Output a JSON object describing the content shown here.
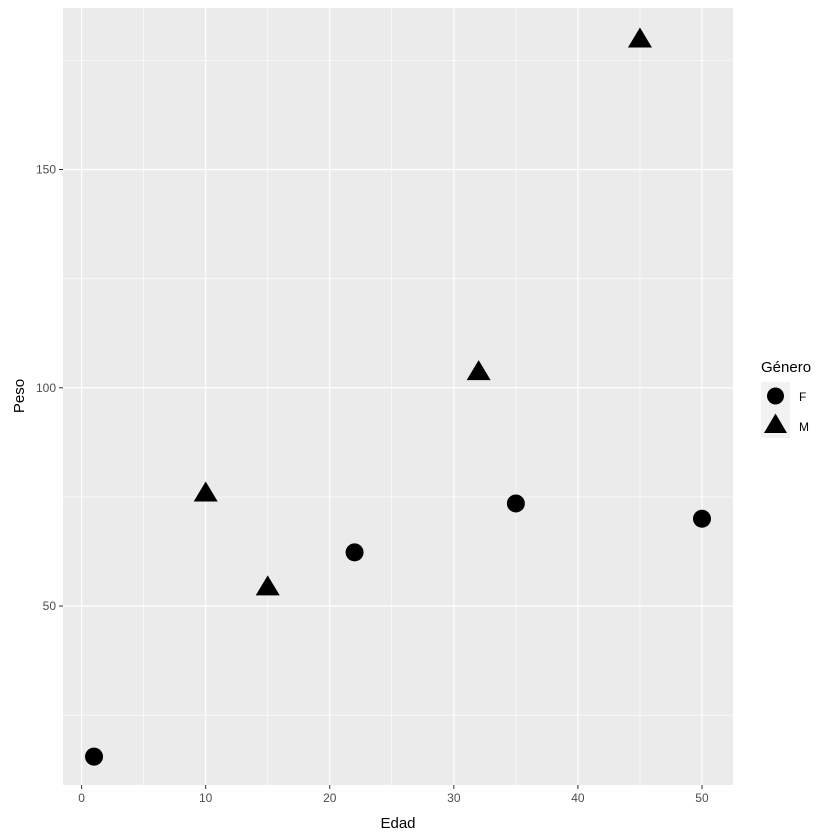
{
  "chart_data": {
    "type": "scatter",
    "title": "",
    "xlabel": "Edad",
    "ylabel": "Peso",
    "xlim": [
      -1.5,
      52.5
    ],
    "ylim": [
      9,
      187
    ],
    "x_ticks": [
      0,
      10,
      20,
      30,
      40,
      50
    ],
    "y_ticks": [
      50,
      100,
      150
    ],
    "grid": true,
    "legend": {
      "title": "Género",
      "placement": "right",
      "entries": [
        {
          "label": "F",
          "shape": "circle"
        },
        {
          "label": "M",
          "shape": "triangle"
        }
      ]
    },
    "series": [
      {
        "name": "F",
        "shape": "circle",
        "points": [
          {
            "x": 1,
            "y": 15.5
          },
          {
            "x": 22,
            "y": 62.3
          },
          {
            "x": 35,
            "y": 73.5
          },
          {
            "x": 50,
            "y": 70.0
          }
        ]
      },
      {
        "name": "M",
        "shape": "triangle",
        "points": [
          {
            "x": 10,
            "y": 76.0
          },
          {
            "x": 15,
            "y": 54.5
          },
          {
            "x": 32,
            "y": 103.8
          },
          {
            "x": 45,
            "y": 180.0
          }
        ]
      }
    ],
    "colors": {
      "panel_bg": "#EBEBEB",
      "grid_major": "#FFFFFF",
      "point": "#000000",
      "tick_text": "#4D4D4D",
      "tick_mark": "#333333"
    }
  }
}
